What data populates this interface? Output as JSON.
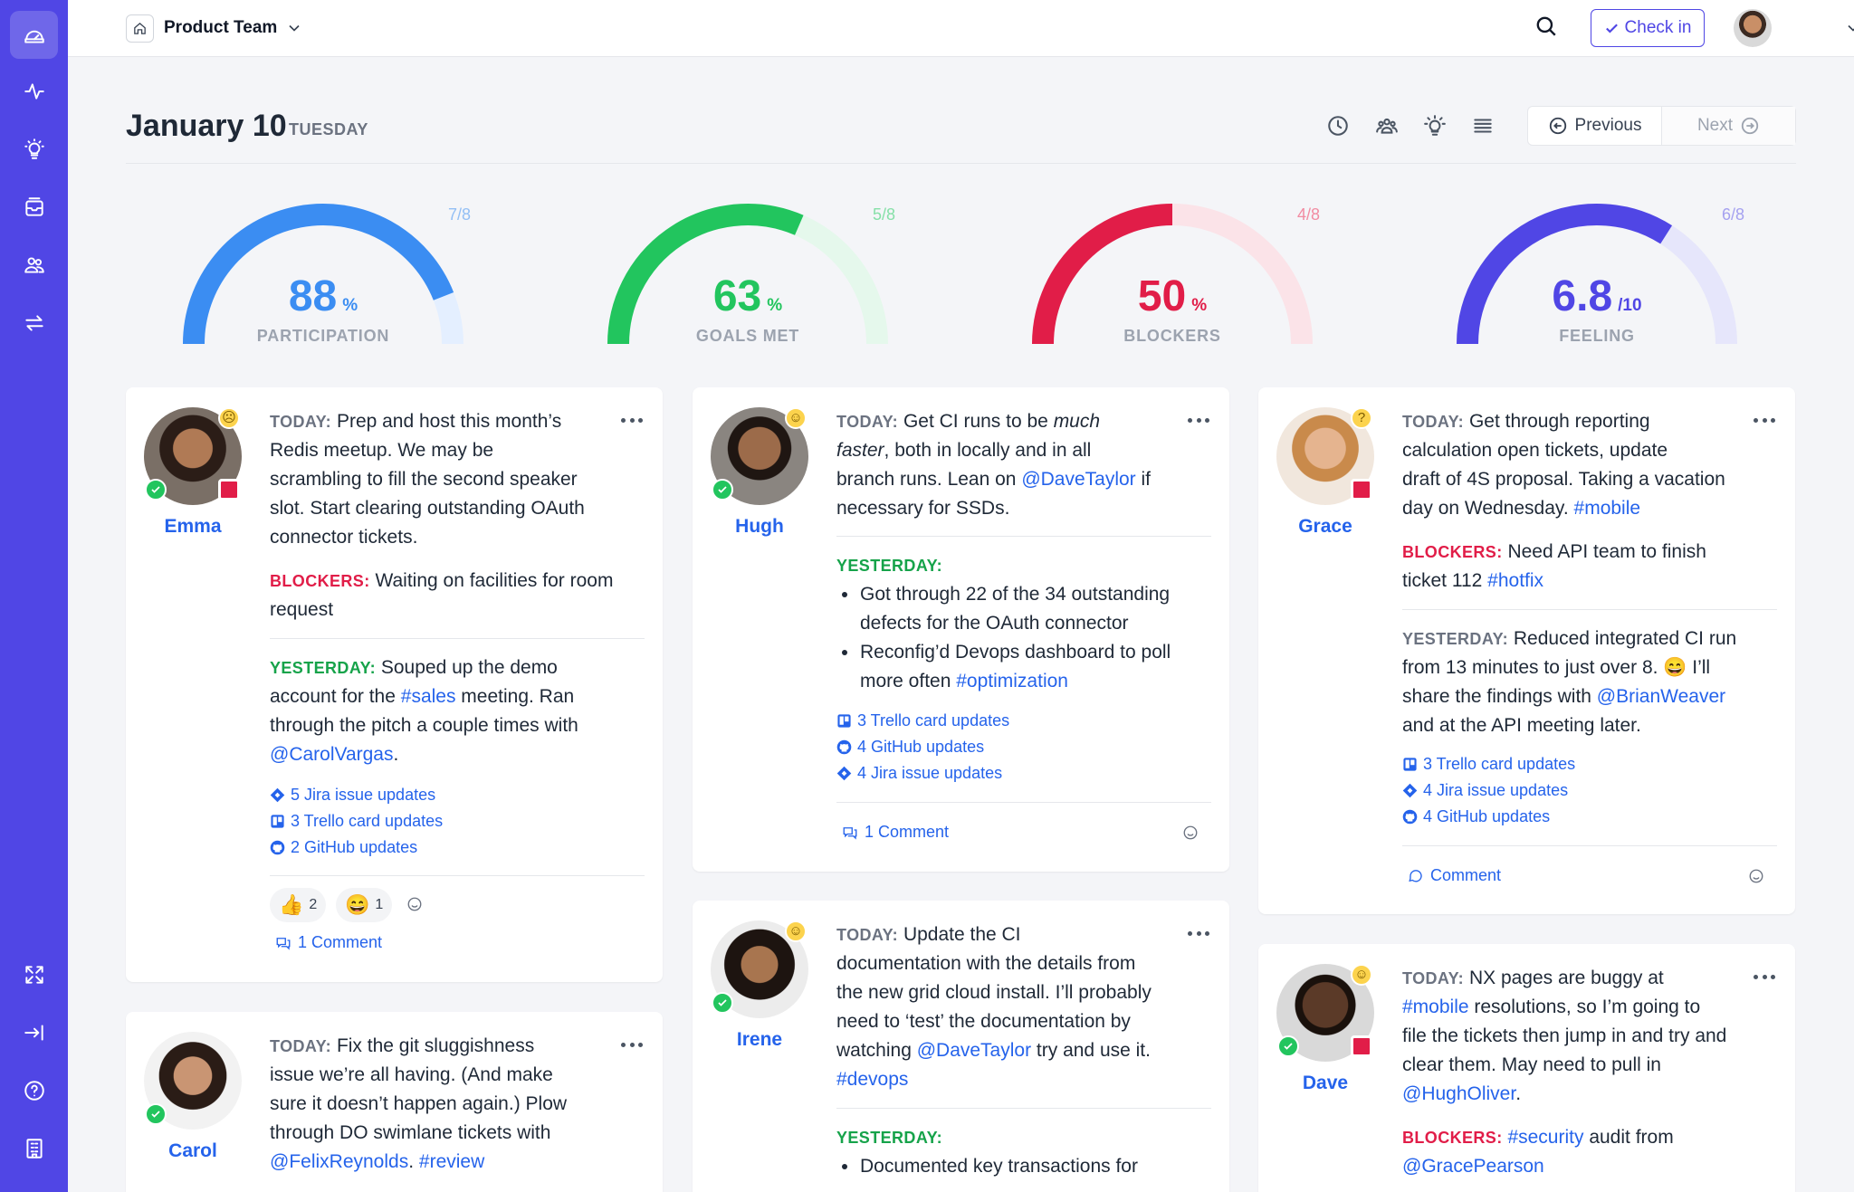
{
  "topbar": {
    "team": "Product Team",
    "checkin": "Check in"
  },
  "header": {
    "date": "January 10",
    "day": "TUESDAY",
    "previous": "Previous",
    "next": "Next"
  },
  "gauges": [
    {
      "label": "PARTICIPATION",
      "value": "88",
      "unit": "%",
      "fraction": "7/8",
      "percent": 88,
      "color": "#3b8df2",
      "track": "#e4efff",
      "frac_color": "#93bff5"
    },
    {
      "label": "GOALS MET",
      "value": "63",
      "unit": "%",
      "fraction": "5/8",
      "percent": 63,
      "color": "#22c55e",
      "track": "#e5f8ec",
      "frac_color": "#86e0a8"
    },
    {
      "label": "BLOCKERS",
      "value": "50",
      "unit": "%",
      "fraction": "4/8",
      "percent": 50,
      "color": "#e11d48",
      "track": "#fbe3e8",
      "frac_color": "#f28ca2"
    },
    {
      "label": "FEELING",
      "value": "6.8",
      "unit": "/10",
      "fraction": "6/8",
      "percent": 68,
      "color": "#5046e5",
      "track": "#e6e6fb",
      "frac_color": "#a5a1f0"
    }
  ],
  "labels": {
    "today": "TODAY:",
    "blockers": "BLOCKERS:",
    "yesterday": "YESTERDAY:"
  },
  "emma": {
    "name": "Emma",
    "today": [
      "Prep and host this month’s",
      "Redis meetup. We may be",
      "scrambling to fill the second speaker",
      "slot. Start clearing outstanding OAuth",
      "connector tickets."
    ],
    "blockers": [
      "Waiting on facilities for room",
      "request"
    ],
    "yesterday": {
      "l1": "Souped up the demo",
      "l2a": "account for the ",
      "l2tag": "#sales",
      "l2b": " meeting. Ran",
      "l3": "through the pitch a couple times with",
      "l4tag": "@CarolVargas",
      "l4b": "."
    },
    "integrations": [
      "5 Jira issue updates",
      "3 Trello card updates",
      "2 GitHub updates"
    ],
    "reactions": [
      {
        "emoji": "👍",
        "count": "2"
      },
      {
        "emoji": "😄",
        "count": "1"
      }
    ],
    "comments": "1 Comment"
  },
  "hugh": {
    "name": "Hugh",
    "today": {
      "l1a": "Get CI runs to be ",
      "l1em": "much",
      "l2em": "faster",
      "l2b": ", both in locally and in all",
      "l3a": "branch runs. Lean on ",
      "l3tag": "@DaveTaylor",
      "l3b": " if",
      "l4": "necessary for SSDs."
    },
    "yesterday": [
      "Got through 22 of the 34 outstanding",
      "defects for the OAuth connector",
      "Reconfig’d Devops dashboard to poll",
      "more often "
    ],
    "yesterday_tag": "#optimization",
    "integrations": [
      "3 Trello card updates",
      "4 GitHub updates",
      "4 Jira issue updates"
    ],
    "comments": "1 Comment"
  },
  "grace": {
    "name": "Grace",
    "today": [
      "Get through reporting",
      "calculation open tickets, update",
      "draft of 4S proposal. Taking a vacation",
      "day on Wednesday. "
    ],
    "today_tag": "#mobile",
    "blockers": [
      "Need API team to finish",
      "ticket 112 "
    ],
    "blockers_tag": "#hotfix",
    "yesterday": {
      "l1": "Reduced integrated CI run",
      "l2": "from 13 minutes to just over 8. 😄 I’ll",
      "l3a": "share the findings with ",
      "l3tag": "@BrianWeaver",
      "l4": "and at the API meeting later."
    },
    "integrations": [
      "3 Trello card updates",
      "4 Jira issue updates",
      "4 GitHub updates"
    ],
    "comments": "Comment"
  },
  "carol": {
    "name": "Carol",
    "today": [
      "Fix the git sluggishness",
      "issue we’re all having. (And make",
      "sure it doesn’t happen again.) Plow",
      "through DO swimlane tickets with"
    ],
    "today_tag1": "@FelixReynolds",
    "today_sep": ". ",
    "today_tag2": "#review"
  },
  "irene": {
    "name": "Irene",
    "today": [
      "Update the CI",
      "documentation with the details from",
      "the new grid cloud install. I’ll probably",
      "need to ‘test’ the documentation by",
      "watching "
    ],
    "today_tag": "@DaveTaylor",
    "today_after": " try and use it.",
    "today_tag2": "#devops",
    "yesterday": [
      "Documented key transactions for"
    ]
  },
  "dave": {
    "name": "Dave",
    "today_l1": "NX pages are buggy at",
    "today_tag1": "#mobile",
    "today_l2": " resolutions, so I’m going to",
    "today_l3": "file the tickets then jump in and try and",
    "today_l4": "clear them. May need to pull in",
    "today_tag2": "@HughOliver",
    "today_end": ".",
    "blockers_tag": "#security",
    "blockers_after": " audit from",
    "blockers_tag2": "@GracePearson"
  }
}
